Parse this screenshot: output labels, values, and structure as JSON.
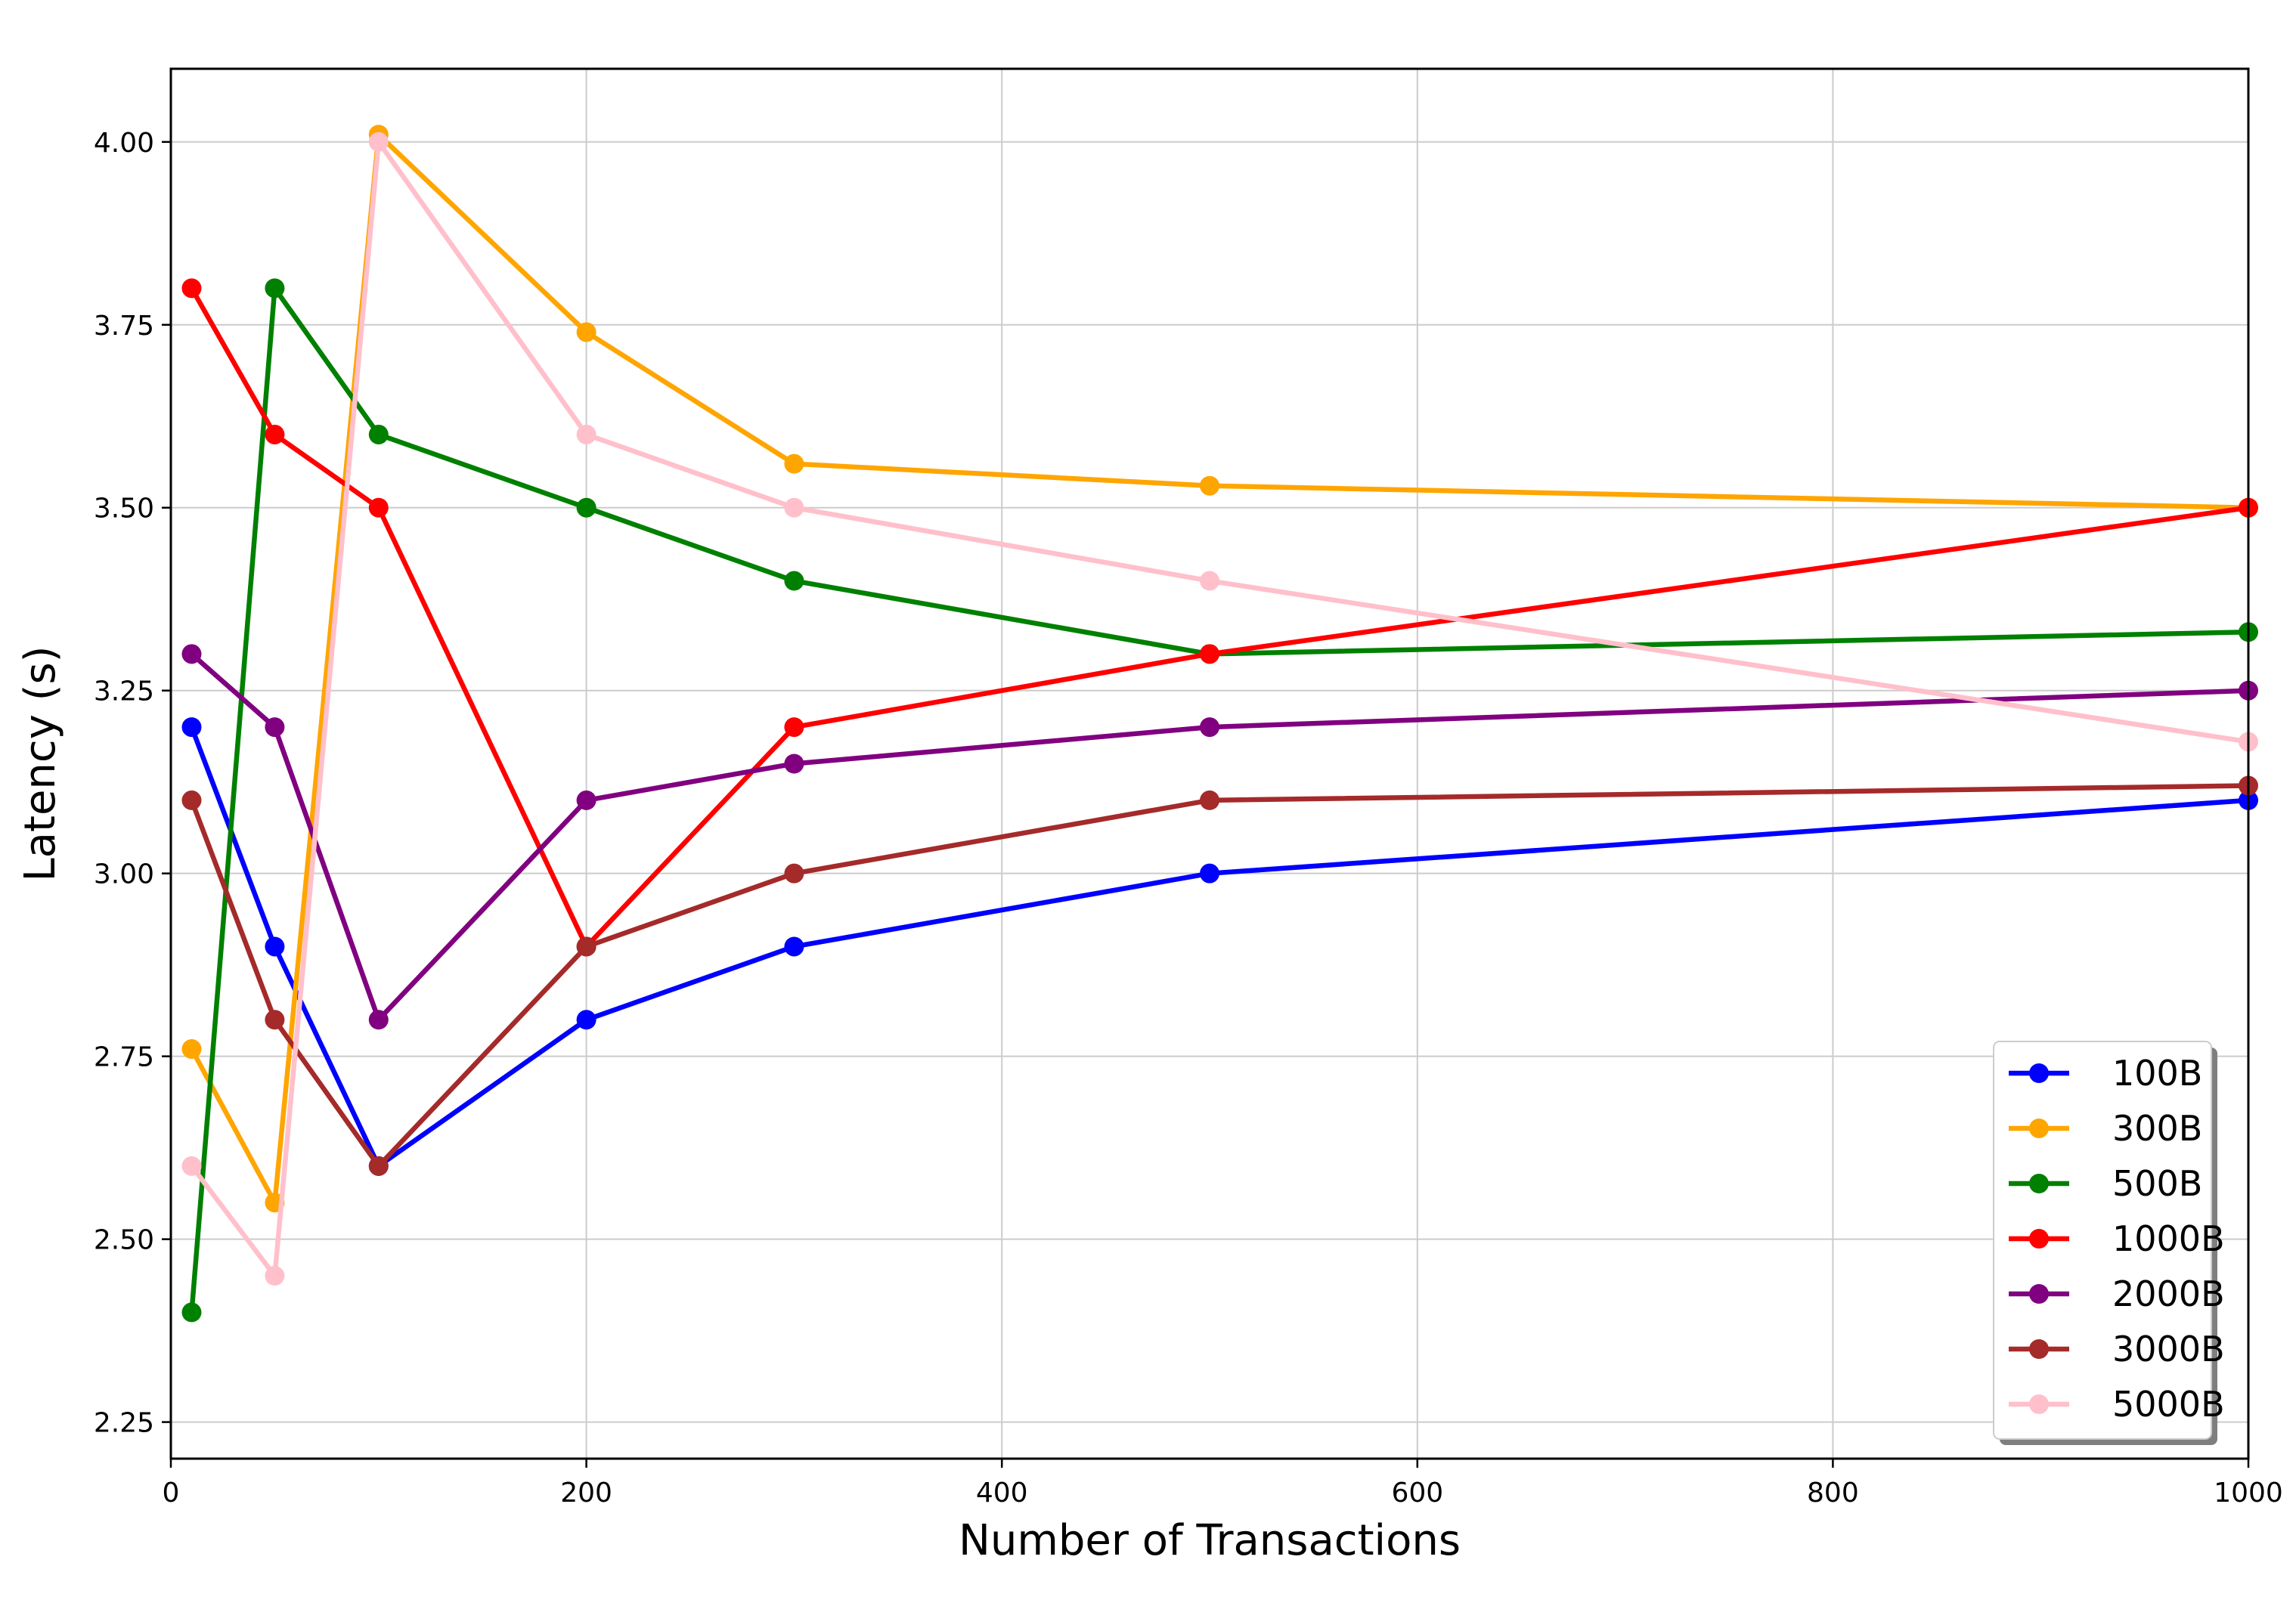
{
  "chart_data": {
    "type": "line",
    "title": "",
    "xlabel": "Number of Transactions",
    "ylabel": "Latency (s)",
    "x": [
      10,
      50,
      100,
      200,
      300,
      500,
      1000
    ],
    "xlim": [
      0,
      1000
    ],
    "ylim": [
      2.2,
      4.1
    ],
    "xticks": [
      "0",
      "200",
      "400",
      "600",
      "800",
      "1000"
    ],
    "yticks": [
      "2.25",
      "2.50",
      "2.75",
      "3.00",
      "3.25",
      "3.50",
      "3.75",
      "4.00"
    ],
    "grid": true,
    "legend_position": "lower-right",
    "series": [
      {
        "name": "100B",
        "color": "#0000ff",
        "values": [
          3.2,
          2.9,
          2.6,
          2.8,
          2.9,
          3.0,
          3.1
        ]
      },
      {
        "name": "300B",
        "color": "#ffa500",
        "values": [
          2.76,
          2.55,
          4.01,
          3.74,
          3.56,
          3.53,
          3.5
        ]
      },
      {
        "name": "500B",
        "color": "#008000",
        "values": [
          2.4,
          3.8,
          3.6,
          3.5,
          3.4,
          3.3,
          3.33
        ]
      },
      {
        "name": "1000B",
        "color": "#ff0000",
        "values": [
          3.8,
          3.6,
          3.5,
          2.9,
          3.2,
          3.3,
          3.5
        ]
      },
      {
        "name": "2000B",
        "color": "#800080",
        "values": [
          3.3,
          3.2,
          2.8,
          3.1,
          3.15,
          3.2,
          3.25
        ]
      },
      {
        "name": "3000B",
        "color": "#a52a2a",
        "values": [
          3.1,
          2.8,
          2.6,
          2.9,
          3.0,
          3.1,
          3.12
        ]
      },
      {
        "name": "5000B",
        "color": "#ffc0cb",
        "values": [
          2.6,
          2.45,
          4.0,
          3.6,
          3.5,
          3.4,
          3.18
        ]
      }
    ]
  }
}
